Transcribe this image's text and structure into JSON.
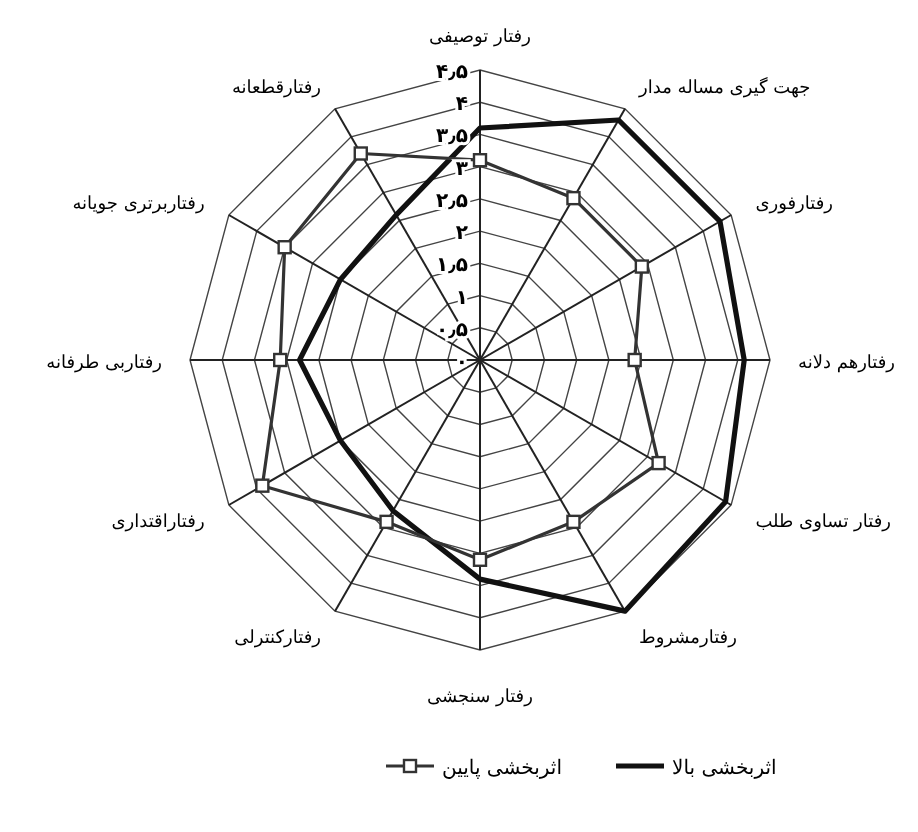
{
  "chart_data": {
    "type": "radar",
    "categories": [
      "رفتار توصیفی",
      "جهت گیری مساله مدار",
      "رفتارفوری",
      "رفتارهم دلانه",
      "رفتار تساوی طلب",
      "رفتارمشروط",
      "رفتار سنجشی",
      "رفتارکنترلی",
      "رفتاراقتداری",
      "رفتاربی طرفانه",
      "رفتاربرتری جویانه",
      "رفتارقطعانه"
    ],
    "series": [
      {
        "name": "اثربخشی بالا",
        "color": "#111111",
        "marker": "none",
        "values": [
          3.6,
          4.3,
          4.3,
          4.1,
          4.4,
          4.5,
          3.4,
          2.7,
          2.5,
          2.8,
          2.5,
          2.6
        ]
      },
      {
        "name": "اثربخشی پایین",
        "color": "#333333",
        "marker": "square",
        "values": [
          3.1,
          2.9,
          2.9,
          2.4,
          3.2,
          2.9,
          3.1,
          2.9,
          3.9,
          3.1,
          3.5,
          3.7
        ]
      }
    ],
    "ylim": [
      0,
      4.5
    ],
    "yticks": [
      {
        "value": 0,
        "label": "۰"
      },
      {
        "value": 0.5,
        "label": "۰٫۵"
      },
      {
        "value": 1,
        "label": "۱"
      },
      {
        "value": 1.5,
        "label": "۱٫۵"
      },
      {
        "value": 2,
        "label": "۲"
      },
      {
        "value": 2.5,
        "label": "۲٫۵"
      },
      {
        "value": 3,
        "label": "۳"
      },
      {
        "value": 3.5,
        "label": "۳٫۵"
      },
      {
        "value": 4,
        "label": "۴"
      },
      {
        "value": 4.5,
        "label": "۴٫۵"
      }
    ],
    "grid": true,
    "legend": "bottom"
  }
}
